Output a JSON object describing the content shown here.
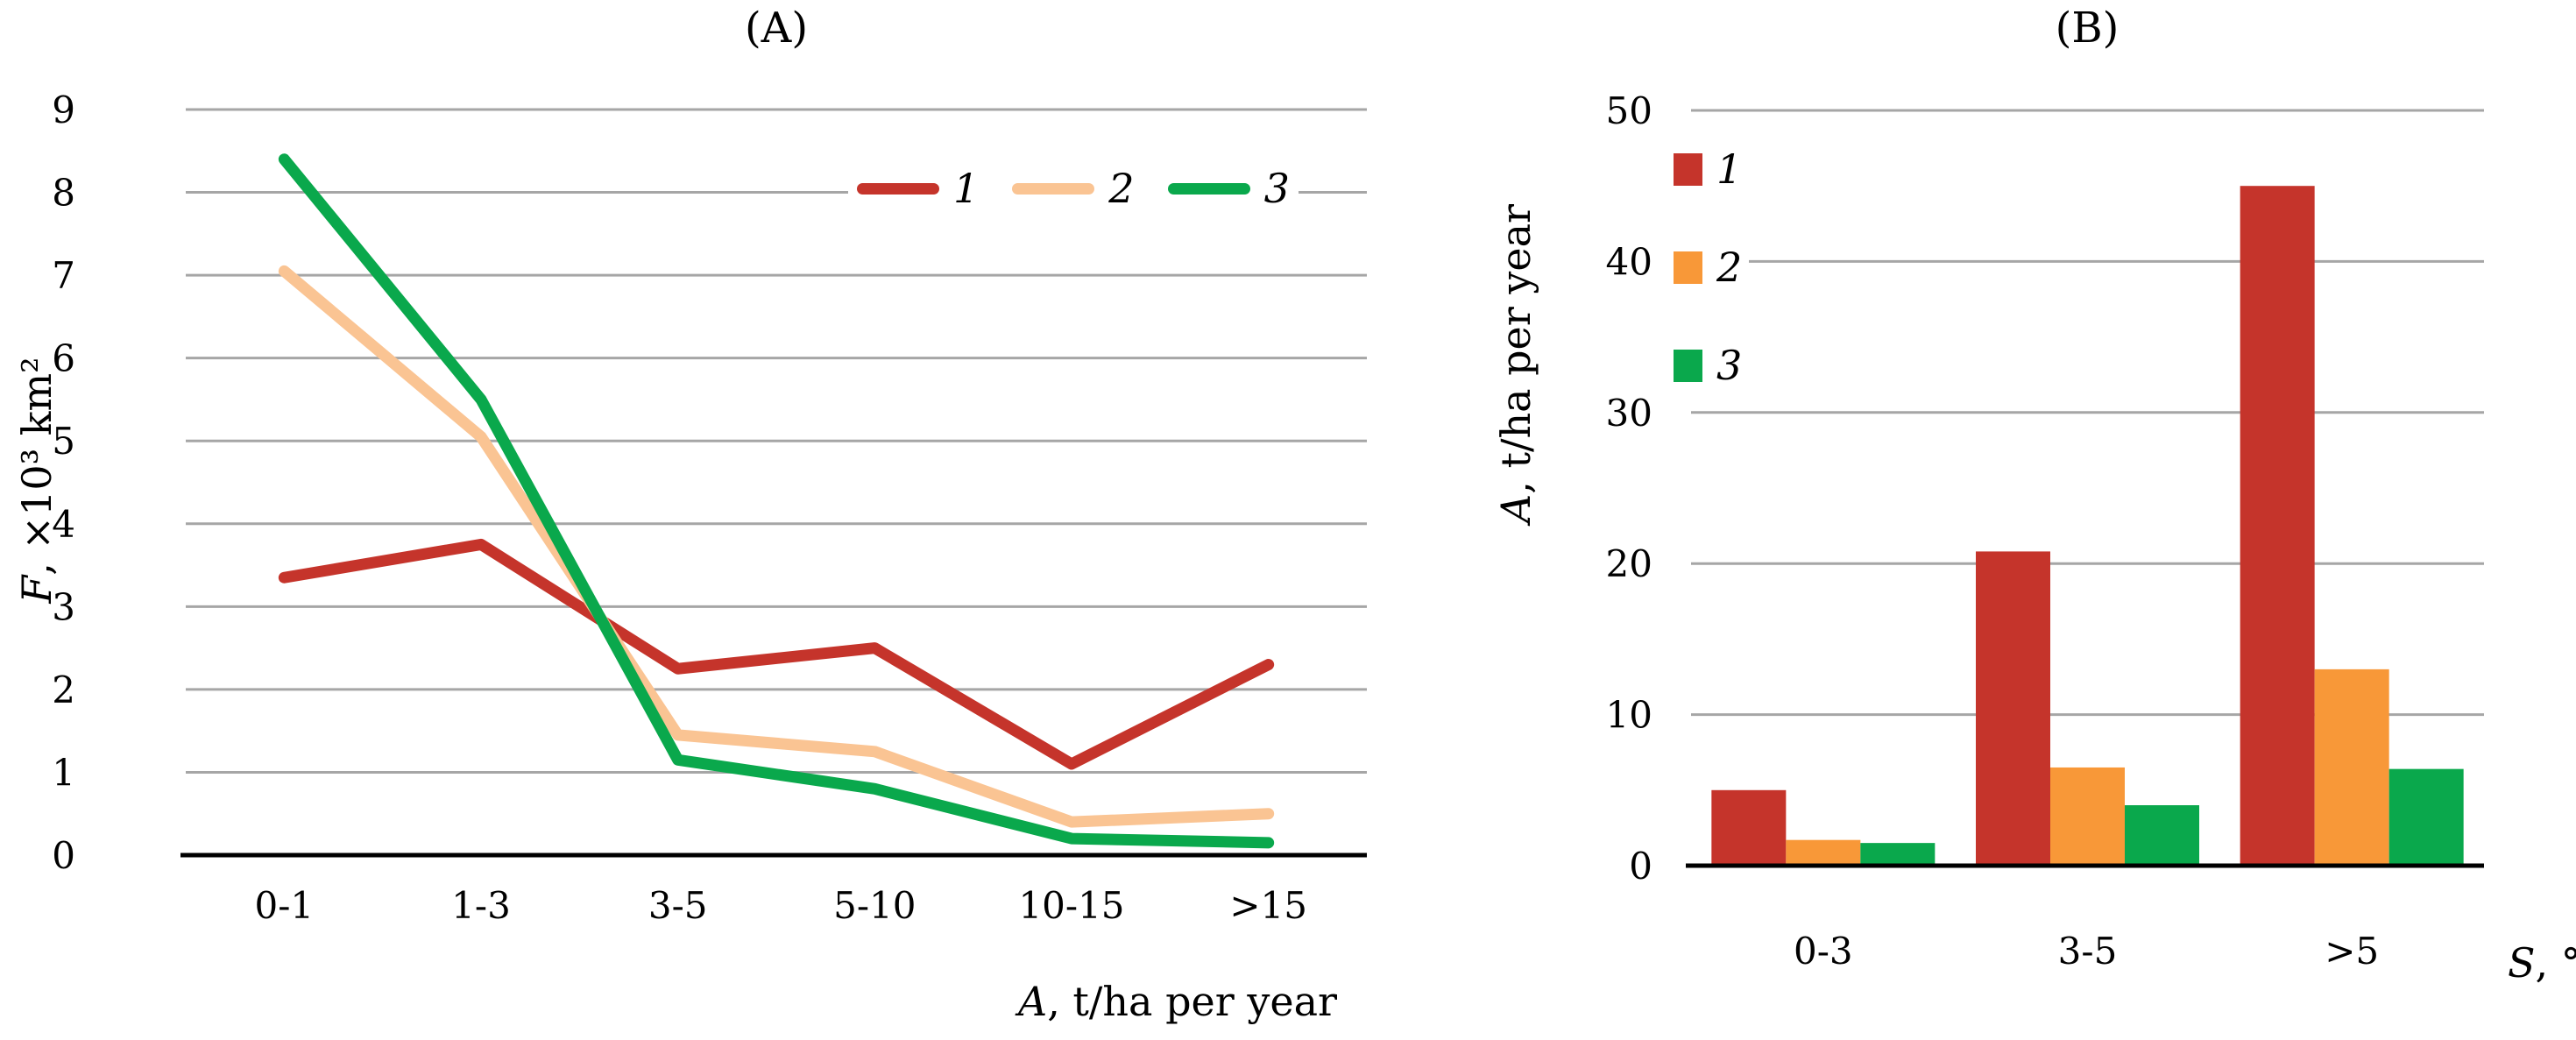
{
  "colors": {
    "background": "#FFFFFF",
    "grid": "#A6A6A6",
    "axis": "#000000",
    "series1_red": "#C5342B",
    "series2_tan": "#FAC493",
    "series2_orange": "#F89838",
    "series3_green": "#0AA84C"
  },
  "chart_data": [
    {
      "type": "line",
      "title": "(A)",
      "ylabel_var": "F",
      "ylabel_rest": ", ×10³ km²",
      "xlabel_var": "A",
      "xlabel_rest": ", t/ha per year",
      "categories": [
        "0-1",
        "1-3",
        "3-5",
        "5-10",
        "10-15",
        ">15"
      ],
      "ylim": [
        0,
        9
      ],
      "tick_values": [
        0,
        1,
        2,
        3,
        4,
        5,
        6,
        7,
        8,
        9
      ],
      "tick_labels": [
        "0",
        "1",
        "2",
        "3",
        "4",
        "5",
        "6",
        "7",
        "8",
        "9"
      ],
      "grid": true,
      "legend_position": "top-right-inside",
      "legend_swatch": "line",
      "series": [
        {
          "name": "1",
          "color": "#C5342B",
          "values": [
            3.35,
            3.75,
            2.25,
            2.5,
            1.1,
            2.3
          ]
        },
        {
          "name": "2",
          "color": "#FAC493",
          "values": [
            7.05,
            5.05,
            1.45,
            1.25,
            0.4,
            0.5
          ]
        },
        {
          "name": "3",
          "color": "#0AA84C",
          "values": [
            8.4,
            5.5,
            1.15,
            0.8,
            0.2,
            0.15
          ]
        }
      ]
    },
    {
      "type": "bar",
      "title": "(B)",
      "ylabel_var": "A",
      "ylabel_rest": ", t/ha per year",
      "xlabel_var": "S",
      "xlabel_rest": ", °",
      "categories": [
        "0-3",
        "3-5",
        ">5"
      ],
      "ylim": [
        0,
        50
      ],
      "tick_values": [
        0,
        10,
        20,
        30,
        40,
        50
      ],
      "tick_labels": [
        "0",
        "10",
        "20",
        "30",
        "40",
        "50"
      ],
      "grid": true,
      "legend_position": "top-left-inside",
      "legend_swatch": "square",
      "series": [
        {
          "name": "1",
          "color": "#C5342B",
          "values": [
            5,
            20.8,
            45
          ]
        },
        {
          "name": "2",
          "color": "#F89838",
          "values": [
            1.7,
            6.5,
            13
          ]
        },
        {
          "name": "3",
          "color": "#0AA84C",
          "values": [
            1.5,
            4,
            6.4
          ]
        }
      ]
    }
  ]
}
